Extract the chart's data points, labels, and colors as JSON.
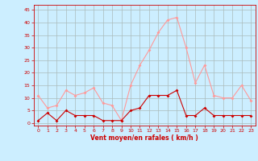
{
  "hours": [
    0,
    1,
    2,
    3,
    4,
    5,
    6,
    7,
    8,
    9,
    10,
    11,
    12,
    13,
    14,
    15,
    16,
    17,
    18,
    19,
    20,
    21,
    22,
    23
  ],
  "wind_avg": [
    1,
    4,
    1,
    5,
    3,
    3,
    3,
    1,
    1,
    1,
    5,
    6,
    11,
    11,
    11,
    13,
    3,
    3,
    6,
    3,
    3,
    3,
    3,
    3
  ],
  "wind_gust": [
    11,
    6,
    7,
    13,
    11,
    12,
    14,
    8,
    7,
    1,
    15,
    23,
    29,
    36,
    41,
    42,
    30,
    16,
    23,
    11,
    10,
    10,
    15,
    9
  ],
  "line_color_avg": "#cc0000",
  "line_color_gust": "#ff9999",
  "bg_color": "#cceeff",
  "grid_color": "#aabbbb",
  "xlabel": "Vent moyen/en rafales ( km/h )",
  "xlabel_color": "#cc0000",
  "tick_color": "#cc0000",
  "ylabel_ticks": [
    0,
    5,
    10,
    15,
    20,
    25,
    30,
    35,
    40,
    45
  ],
  "ylim": [
    -1,
    47
  ],
  "xlim": [
    -0.5,
    23.5
  ]
}
